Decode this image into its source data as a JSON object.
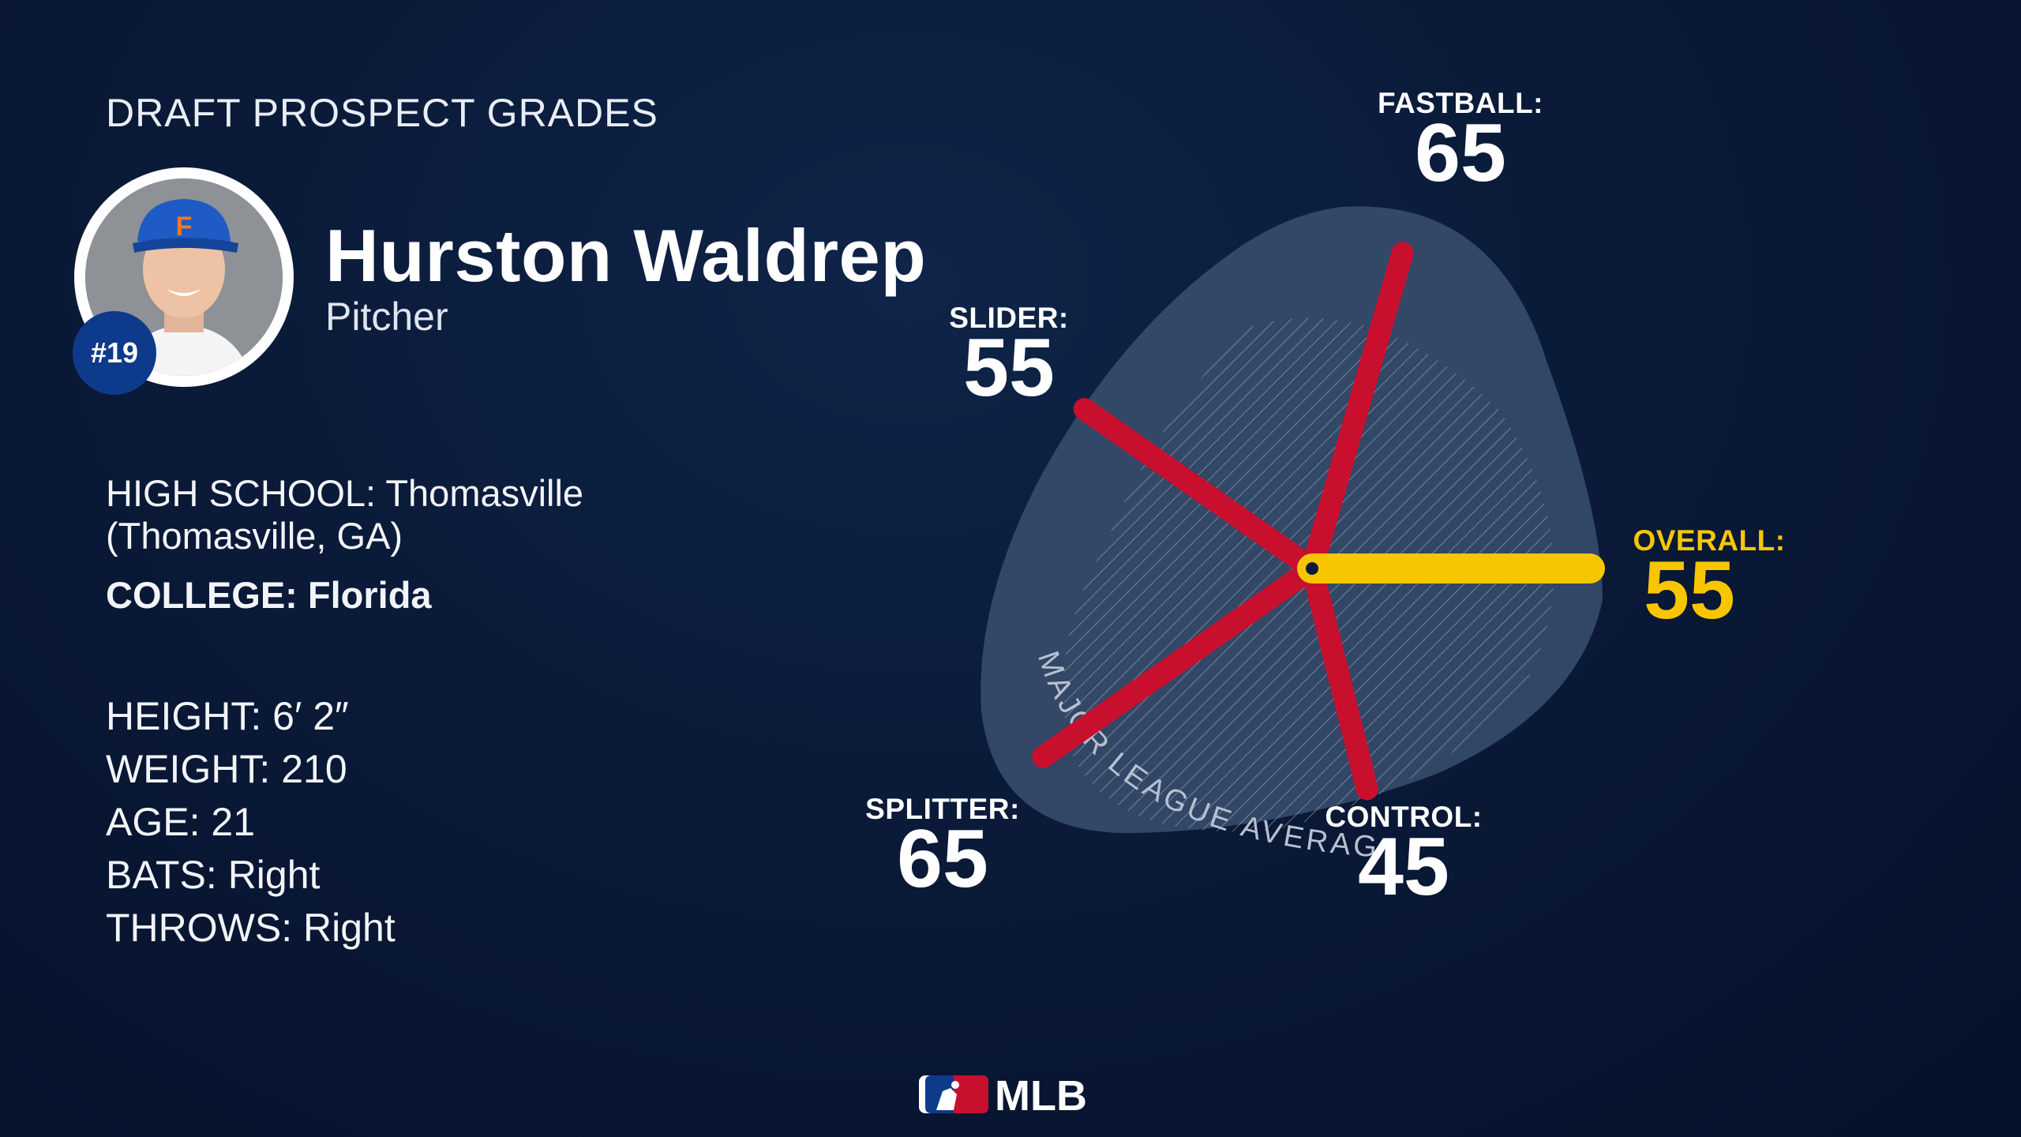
{
  "header": {
    "title": "DRAFT PROSPECT GRADES"
  },
  "player": {
    "name": "Hurston Waldrep",
    "position": "Pitcher",
    "rank": "#19",
    "cap_letter": "F"
  },
  "school": {
    "high_school_label": "HIGH SCHOOL:",
    "high_school_value_line1": "Thomasville",
    "high_school_value_line2": "(Thomasville, GA)",
    "college_label": "COLLEGE:",
    "college_value": "Florida"
  },
  "stats": [
    {
      "label": "HEIGHT:",
      "value": "6′ 2″"
    },
    {
      "label": "WEIGHT:",
      "value": "210"
    },
    {
      "label": "AGE:",
      "value": "21"
    },
    {
      "label": "BATS:",
      "value": "Right"
    },
    {
      "label": "THROWS:",
      "value": "Right"
    }
  ],
  "chart_data": {
    "type": "radial",
    "average_label": "MAJOR LEAGUE AVERAGE",
    "grades": [
      {
        "label": "FASTBALL:",
        "value": 65,
        "color": "#c8102e"
      },
      {
        "label": "SLIDER:",
        "value": 55,
        "color": "#c8102e"
      },
      {
        "label": "SPLITTER:",
        "value": 65,
        "color": "#c8102e"
      },
      {
        "label": "CONTROL:",
        "value": 45,
        "color": "#c8102e"
      },
      {
        "label": "OVERALL:",
        "value": 55,
        "color": "#f7c600"
      }
    ]
  },
  "branding": {
    "logo_text": "MLB"
  },
  "colors": {
    "background": "#0a1a38",
    "accent_red": "#c8102e",
    "accent_yellow": "#f7c600",
    "badge_blue": "#0e3a8c"
  }
}
